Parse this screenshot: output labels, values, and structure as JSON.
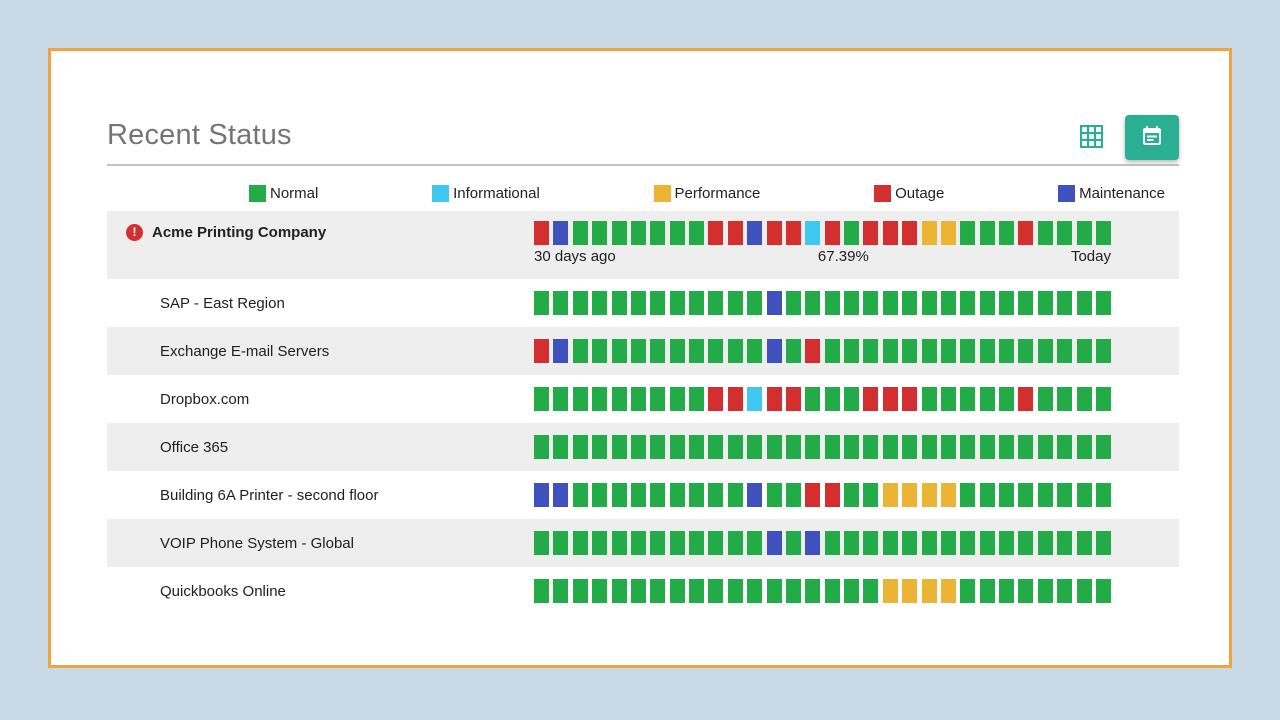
{
  "page": {
    "background": "#c9dae6",
    "card_border_color": "#f0a341"
  },
  "header": {
    "title": "Recent Status"
  },
  "toolbar": {
    "grid_view_icon": "grid-view-icon",
    "calendar_icon": "calendar-icon",
    "accent_color": "#2aaf94"
  },
  "status_colors": {
    "N": "#23ab47",
    "I": "#41c8f1",
    "P": "#ebb434",
    "O": "#d32f2f",
    "M": "#3f51bc"
  },
  "legend": {
    "items": [
      {
        "key": "N",
        "label": "Normal"
      },
      {
        "key": "I",
        "label": "Informational"
      },
      {
        "key": "P",
        "label": "Performance"
      },
      {
        "key": "O",
        "label": "Outage"
      },
      {
        "key": "M",
        "label": "Maintenance"
      }
    ]
  },
  "timeline": {
    "start": "30 days ago",
    "uptime": "67.39%",
    "end": "Today"
  },
  "rows": [
    {
      "name": "Acme Printing Company",
      "alert": true,
      "bold": true,
      "timeline": true,
      "squares": "OMNNNNNNNOOMOOIONOOOPPNNNONNNN"
    },
    {
      "name": "SAP - East Region",
      "squares": "NNNNNNNNNNNNMNNNNNNNNNNNNNNNNN"
    },
    {
      "name": "Exchange E-mail Servers",
      "squares": "OMNNNNNNNNNNMNONNNNNNNNNNNNNNN"
    },
    {
      "name": "Dropbox.com",
      "squares": "NNNNNNNNNOOIOONNNOOONNNNNONNNN"
    },
    {
      "name": "Office 365",
      "squares": "NNNNNNNNNNNNNNNNNNNNNNNNNNNNNN"
    },
    {
      "name": "Building 6A Printer - second floor",
      "squares": "MMNNNNNNNNNMNNOONNPPPPNNNNNNNN"
    },
    {
      "name": "VOIP Phone System - Global",
      "squares": "NNNNNNNNNNNNMNMNNNNNNNNNNNNNNN"
    },
    {
      "name": "Quickbooks Online",
      "squares": "NNNNNNNNNNNNNNNNNNPPPPNNNNNNNN"
    }
  ]
}
